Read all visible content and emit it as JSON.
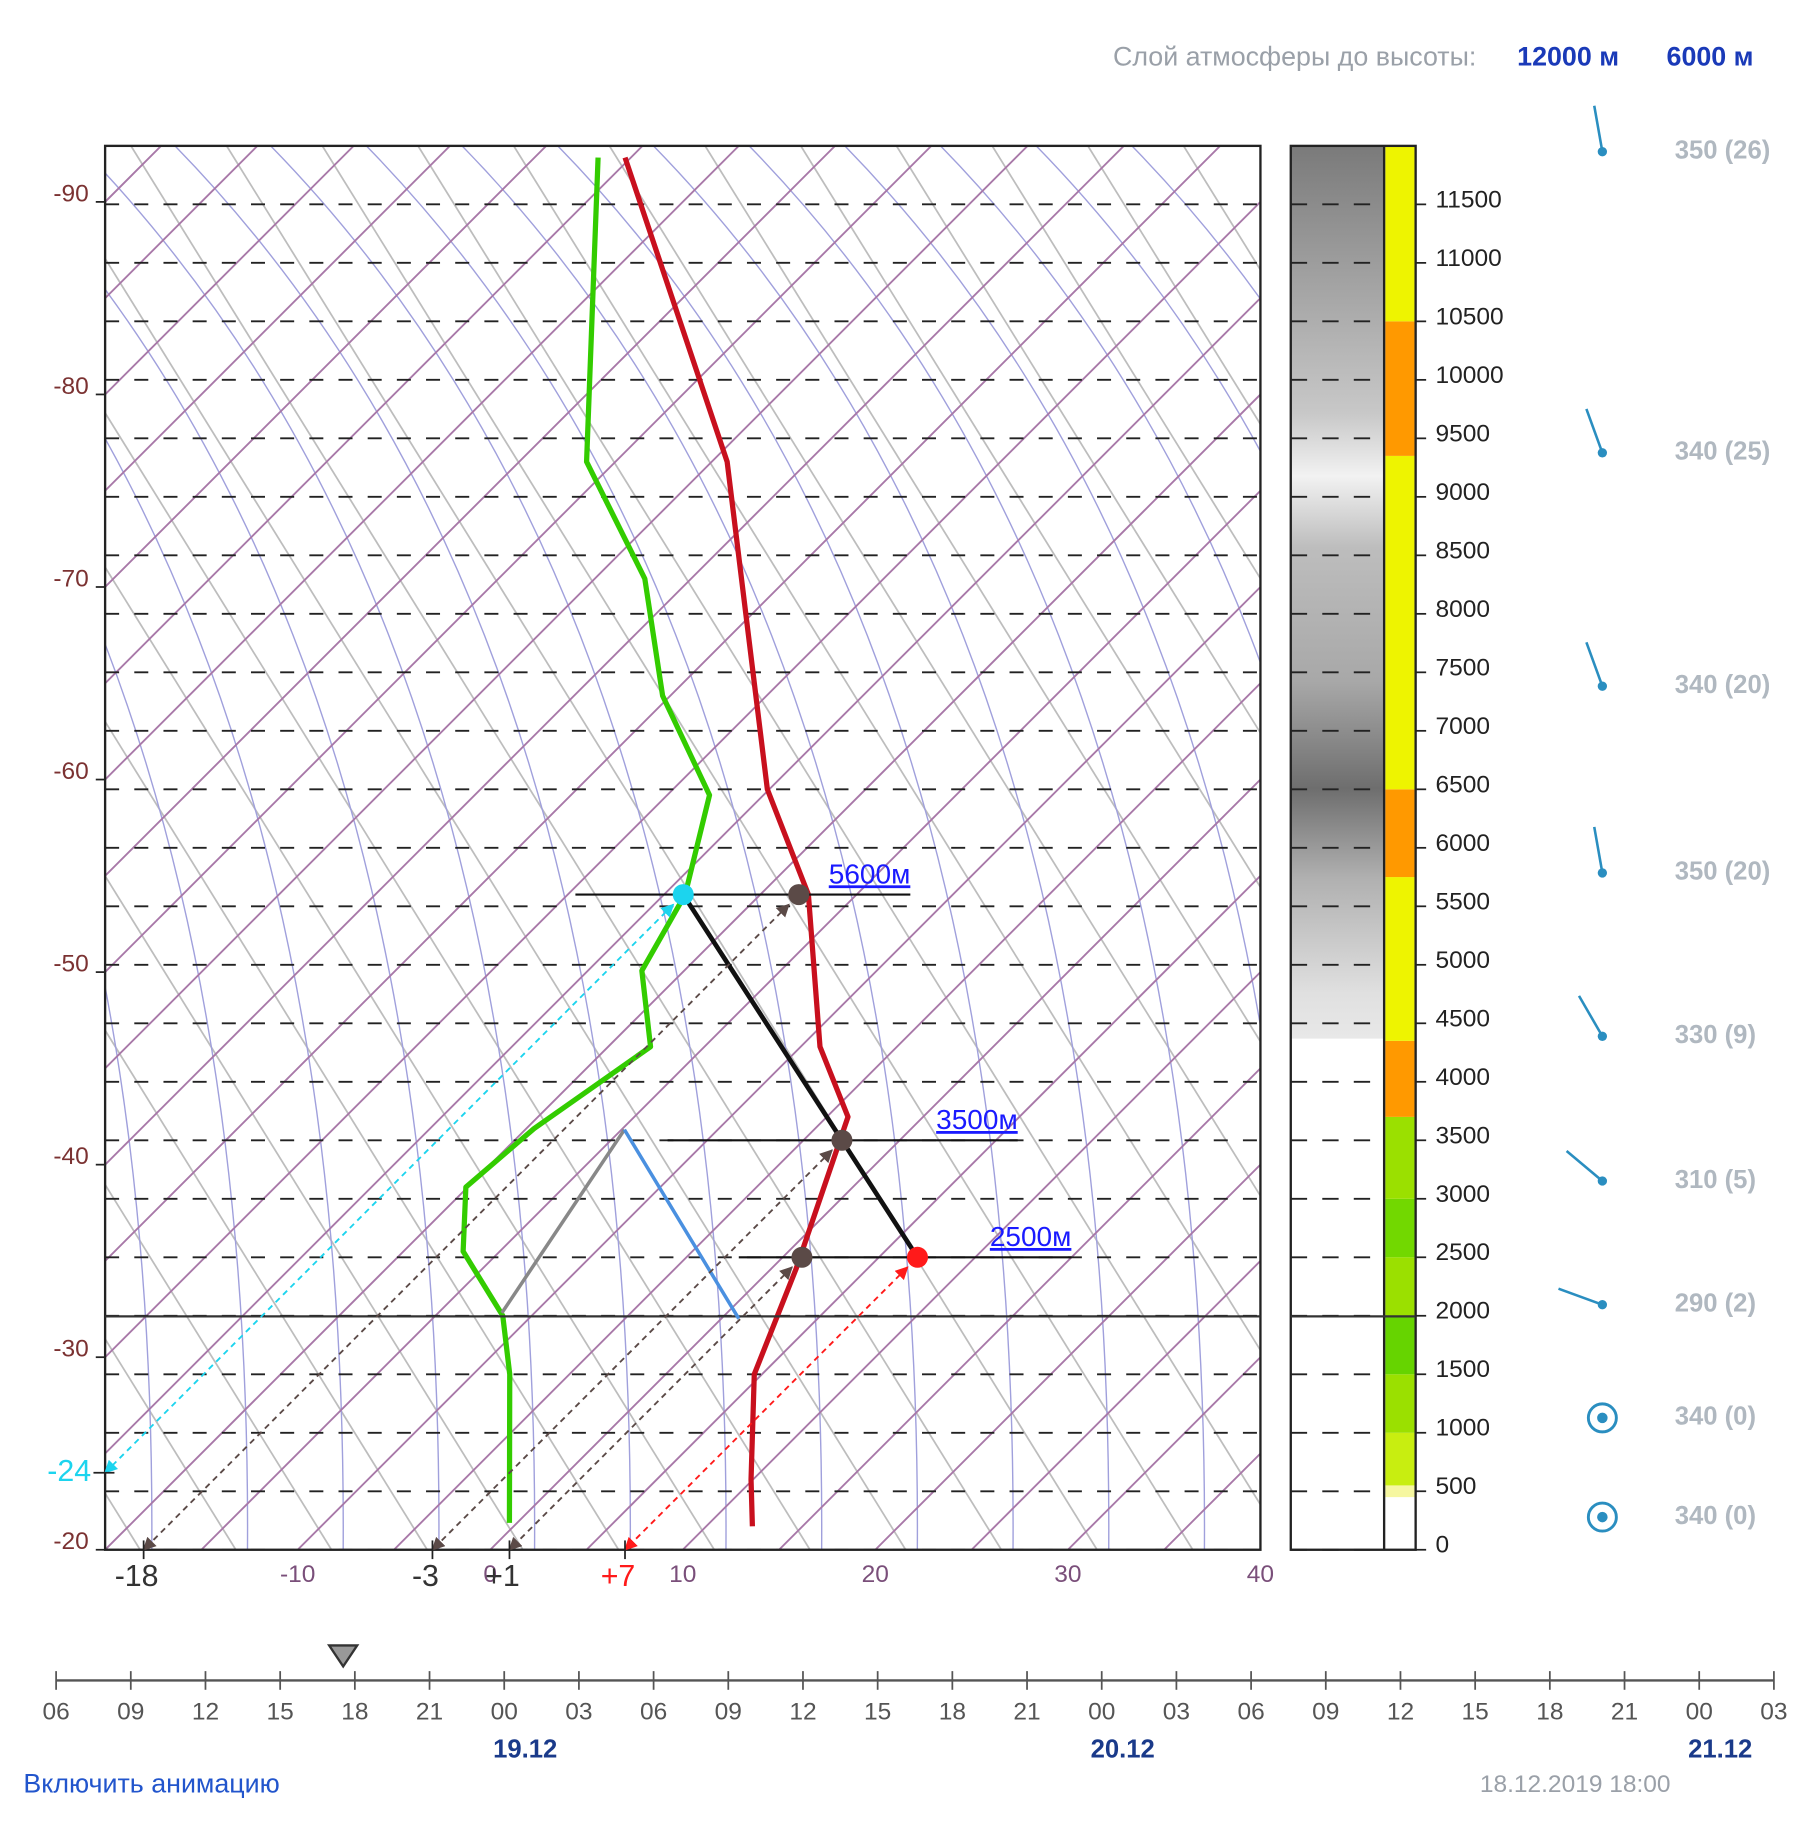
{
  "header": {
    "label": "Слой атмосферы до высоты:",
    "options": [
      "12000 м",
      "6000 м"
    ]
  },
  "chart_data": {
    "type": "skewt",
    "xlim": [
      -20,
      40
    ],
    "ylim": [
      0,
      12000
    ],
    "xticks": [
      -10,
      0,
      10,
      20,
      30,
      40
    ],
    "isotherm_labels": [
      -90,
      -80,
      -70,
      -60,
      -50,
      -40,
      -30,
      -20
    ],
    "yticks": [
      0,
      500,
      1000,
      1500,
      2000,
      2500,
      3000,
      3500,
      4000,
      4500,
      5000,
      5500,
      6000,
      6500,
      7000,
      7500,
      8000,
      8500,
      9000,
      9500,
      10000,
      10500,
      11000,
      11500
    ],
    "series": [
      {
        "color": "#c8101e",
        "heights": [
          200,
          600,
          1500,
          2400,
          3700,
          4300,
          5600,
          6500,
          9300,
          11900
        ],
        "values": [
          12.4,
          9.9,
          4.6,
          1.3,
          -3.9,
          -9,
          -17.5,
          -25.1,
          -44.2,
          -65.3
        ]
      },
      {
        "color": "#33cc00",
        "heights": [
          230,
          1500,
          2000,
          2550,
          3100,
          3600,
          4300,
          4950,
          5600,
          6450,
          7300,
          8300,
          9300,
          11900
        ],
        "values": [
          -0.4,
          -8.1,
          -11.5,
          -16.9,
          -20.1,
          -19.6,
          -17.8,
          -22.2,
          -23.9,
          -27.8,
          -35.4,
          -42.4,
          -51.5,
          -66.7
        ]
      }
    ],
    "levels": [
      2500,
      3500,
      5600
    ],
    "level_labels": [
      "2500м",
      "3500м",
      "5600м"
    ],
    "readings": {
      "values": [
        -18,
        -3,
        {
          "value": 1,
          "label": "+1"
        },
        {
          "value": 7,
          "label": "+7"
        },
        -24
      ],
      "heights": [
        5600,
        3500,
        2500,
        2500,
        5600
      ],
      "colors": [
        "#5b4a47",
        "#5b4a47",
        "#5b4a47",
        "#ff1a1a",
        "#1cd4ee"
      ]
    },
    "column_bands": [
      {
        "from": 450,
        "to": 550,
        "color": "#f6f7a0"
      },
      {
        "from": 550,
        "to": 1000,
        "color": "#c8ee10"
      },
      {
        "from": 1000,
        "to": 1500,
        "color": "#9be000"
      },
      {
        "from": 1500,
        "to": 2000,
        "color": "#66d400"
      },
      {
        "from": 2000,
        "to": 2500,
        "color": "#9be000"
      },
      {
        "from": 2500,
        "to": 3000,
        "color": "#72d800"
      },
      {
        "from": 3000,
        "to": 3700,
        "color": "#9be000"
      },
      {
        "from": 3700,
        "to": 4350,
        "color": "#ff9900"
      },
      {
        "from": 4350,
        "to": 5750,
        "color": "#eef400"
      },
      {
        "from": 5750,
        "to": 6500,
        "color": "#ff9900"
      },
      {
        "from": 6500,
        "to": 9350,
        "color": "#eef400"
      },
      {
        "from": 9350,
        "to": 10500,
        "color": "#ff9900"
      },
      {
        "from": 10500,
        "to": 12000,
        "color": "#eef400"
      }
    ],
    "winds": {
      "labels": [
        "350 (26)",
        "340 (25)",
        "340 (20)",
        "350 (20)",
        "330 (9)",
        "310 (5)",
        "290 (2)",
        "340 (0)",
        "340 (0)"
      ],
      "directions": [
        350,
        340,
        340,
        350,
        330,
        310,
        290,
        340,
        340
      ],
      "speeds": [
        26,
        25,
        20,
        20,
        9,
        5,
        2,
        0,
        0
      ]
    }
  },
  "timeline": {
    "ticks": [
      "06",
      "09",
      "12",
      "15",
      "18",
      "21",
      "00",
      "03",
      "06",
      "09",
      "12",
      "15",
      "18",
      "21",
      "00",
      "03",
      "06",
      "09",
      "12",
      "15",
      "18",
      "21",
      "00",
      "03"
    ],
    "dates": [
      "19.12",
      "20.12",
      "21.12"
    ]
  },
  "footer": {
    "link": "Включить анимацию",
    "timestamp": "18.12.2019 18:00"
  }
}
